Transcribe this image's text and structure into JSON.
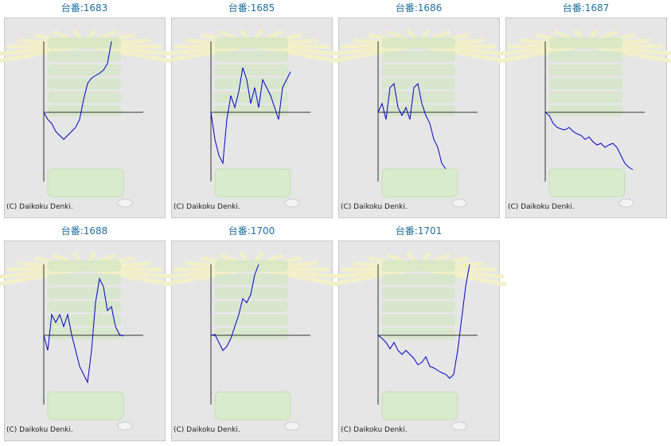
{
  "chart_data": [
    {
      "type": "line",
      "title": "台番:1683",
      "credit": "(C) Daikoku Denki.",
      "color": "#0000cc",
      "xlim": [
        0,
        25
      ],
      "ylim": [
        -87,
        89
      ],
      "values": [
        0,
        -9,
        -14,
        -24,
        -29,
        -34,
        -29,
        -24,
        -19,
        -9,
        16,
        36,
        43,
        46,
        49,
        53,
        61,
        89
      ]
    },
    {
      "type": "line",
      "title": "台番:1685",
      "credit": "(C) Daikoku Denki.",
      "color": "#0000cc",
      "xlim": [
        0,
        25
      ],
      "ylim": [
        -87,
        89
      ],
      "values": [
        0,
        -34,
        -54,
        -64,
        -9,
        21,
        6,
        26,
        56,
        41,
        11,
        31,
        6,
        41,
        31,
        21,
        6,
        -9,
        31,
        41,
        51
      ]
    },
    {
      "type": "line",
      "title": "台番:1686",
      "credit": "(C) Daikoku Denki.",
      "color": "#0000cc",
      "xlim": [
        0,
        25
      ],
      "ylim": [
        -87,
        89
      ],
      "values": [
        0,
        11,
        -9,
        31,
        36,
        6,
        -4,
        6,
        -9,
        31,
        36,
        11,
        -4,
        -14,
        -34,
        -44,
        -64,
        -71
      ]
    },
    {
      "type": "line",
      "title": "台番:1687",
      "credit": "(C) Daikoku Denki.",
      "color": "#0000cc",
      "xlim": [
        0,
        25
      ],
      "ylim": [
        -87,
        89
      ],
      "values": [
        0,
        -4,
        -14,
        -19,
        -21,
        -22,
        -19,
        -24,
        -27,
        -29,
        -34,
        -31,
        -37,
        -41,
        -39,
        -44,
        -41,
        -39,
        -44,
        -54,
        -64,
        -69,
        -72
      ]
    },
    {
      "type": "line",
      "title": "台番:1688",
      "credit": "(C) Daikoku Denki.",
      "color": "#0000cc",
      "xlim": [
        0,
        25
      ],
      "ylim": [
        -87,
        89
      ],
      "values": [
        0,
        -19,
        26,
        16,
        26,
        11,
        26,
        1,
        -19,
        -39,
        -49,
        -59,
        -19,
        41,
        71,
        61,
        31,
        36,
        11,
        1,
        -1
      ]
    },
    {
      "type": "line",
      "title": "台番:1700",
      "credit": "(C) Daikoku Denki.",
      "color": "#0000cc",
      "xlim": [
        0,
        25
      ],
      "ylim": [
        -87,
        89
      ],
      "values": [
        0,
        1,
        -9,
        -19,
        -14,
        -4,
        11,
        26,
        46,
        41,
        51,
        76,
        89
      ]
    },
    {
      "type": "line",
      "title": "台番:1701",
      "credit": "(C) Daikoku Denki.",
      "color": "#0000cc",
      "xlim": [
        0,
        25
      ],
      "ylim": [
        -87,
        89
      ],
      "values": [
        0,
        -4,
        -9,
        -17,
        -9,
        -19,
        -24,
        -19,
        -24,
        -29,
        -37,
        -34,
        -27,
        -39,
        -41,
        -44,
        -47,
        -49,
        -54,
        -49,
        -19,
        21,
        61,
        89
      ]
    }
  ]
}
